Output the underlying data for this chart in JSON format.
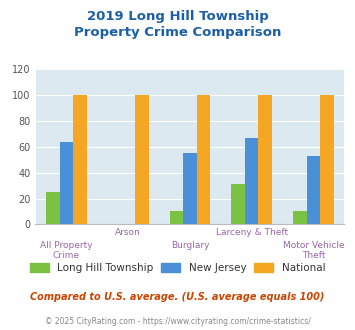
{
  "title_line1": "2019 Long Hill Township",
  "title_line2": "Property Crime Comparison",
  "categories": [
    "All Property Crime",
    "Arson",
    "Burglary",
    "Larceny & Theft",
    "Motor Vehicle Theft"
  ],
  "long_hill": [
    25,
    0,
    10,
    31,
    10
  ],
  "new_jersey": [
    64,
    0,
    55,
    67,
    53
  ],
  "national": [
    100,
    100,
    100,
    100,
    100
  ],
  "color_lht": "#7bc142",
  "color_nj": "#4a90d9",
  "color_nat": "#f5a623",
  "bg_color": "#dce9f0",
  "ylim": [
    0,
    120
  ],
  "yticks": [
    0,
    20,
    40,
    60,
    80,
    100,
    120
  ],
  "legend_labels": [
    "Long Hill Township",
    "New Jersey",
    "National"
  ],
  "footnote1": "Compared to U.S. average. (U.S. average equals 100)",
  "footnote2": "© 2025 CityRating.com - https://www.cityrating.com/crime-statistics/",
  "title_color": "#1a5fa8",
  "footnote1_color": "#cc4400",
  "footnote2_color": "#888888",
  "xlabel_color": "#9966aa",
  "bar_width": 0.22
}
